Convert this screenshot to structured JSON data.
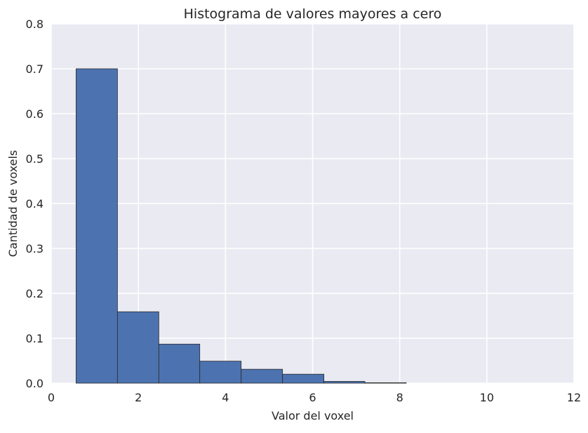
{
  "chart_data": {
    "type": "bar",
    "title": "Histograma de valores mayores a cero",
    "xlabel": "Valor del voxel",
    "ylabel": "Cantidad de voxels",
    "xlim": [
      0,
      12
    ],
    "ylim": [
      0,
      0.8
    ],
    "xticks": [
      {
        "value": 0,
        "label": "0"
      },
      {
        "value": 2,
        "label": "2"
      },
      {
        "value": 4,
        "label": "4"
      },
      {
        "value": 6,
        "label": "6"
      },
      {
        "value": 8,
        "label": "8"
      },
      {
        "value": 10,
        "label": "10"
      },
      {
        "value": 12,
        "label": "12"
      }
    ],
    "yticks": [
      {
        "value": 0.0,
        "label": "0.0"
      },
      {
        "value": 0.1,
        "label": "0.1"
      },
      {
        "value": 0.2,
        "label": "0.2"
      },
      {
        "value": 0.3,
        "label": "0.3"
      },
      {
        "value": 0.4,
        "label": "0.4"
      },
      {
        "value": 0.5,
        "label": "0.5"
      },
      {
        "value": 0.6,
        "label": "0.6"
      },
      {
        "value": 0.7,
        "label": "0.7"
      },
      {
        "value": 0.8,
        "label": "0.8"
      }
    ],
    "bins": [
      {
        "x0": 0.57,
        "x1": 1.52,
        "value": 0.7
      },
      {
        "x0": 1.52,
        "x1": 2.47,
        "value": 0.159
      },
      {
        "x0": 2.47,
        "x1": 3.41,
        "value": 0.087
      },
      {
        "x0": 3.41,
        "x1": 4.36,
        "value": 0.049
      },
      {
        "x0": 4.36,
        "x1": 5.31,
        "value": 0.031
      },
      {
        "x0": 5.31,
        "x1": 6.26,
        "value": 0.02
      },
      {
        "x0": 6.26,
        "x1": 7.2,
        "value": 0.004
      },
      {
        "x0": 7.2,
        "x1": 8.15,
        "value": 0.001
      },
      {
        "x0": 8.15,
        "x1": 9.1,
        "value": 0.0
      },
      {
        "x0": 9.1,
        "x1": 10.05,
        "value": 0.0
      },
      {
        "x0": 10.05,
        "x1": 11.0,
        "value": 0.0
      }
    ],
    "grid": true,
    "legend": "none",
    "colors": {
      "bar_fill": "#4c72b0",
      "bar_edge": "#2a2a2a",
      "plot_background": "#eaeaf2",
      "grid": "#ffffff"
    }
  }
}
